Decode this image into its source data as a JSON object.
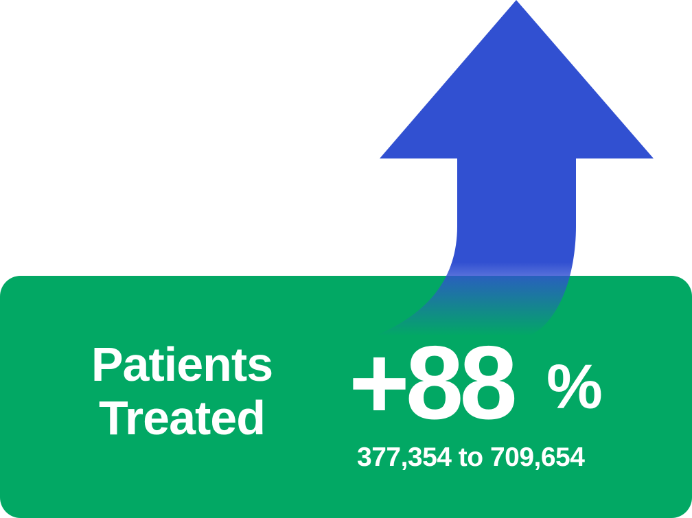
{
  "colors": {
    "card": "#02a864",
    "arrow": "#3150d1",
    "text": "#ffffff"
  },
  "icon": "up-arrow-icon",
  "metric": {
    "label_line1": "Patients",
    "label_line2": "Treated",
    "change": "+88",
    "unit": "%",
    "range": "377,354 to 709,654"
  }
}
